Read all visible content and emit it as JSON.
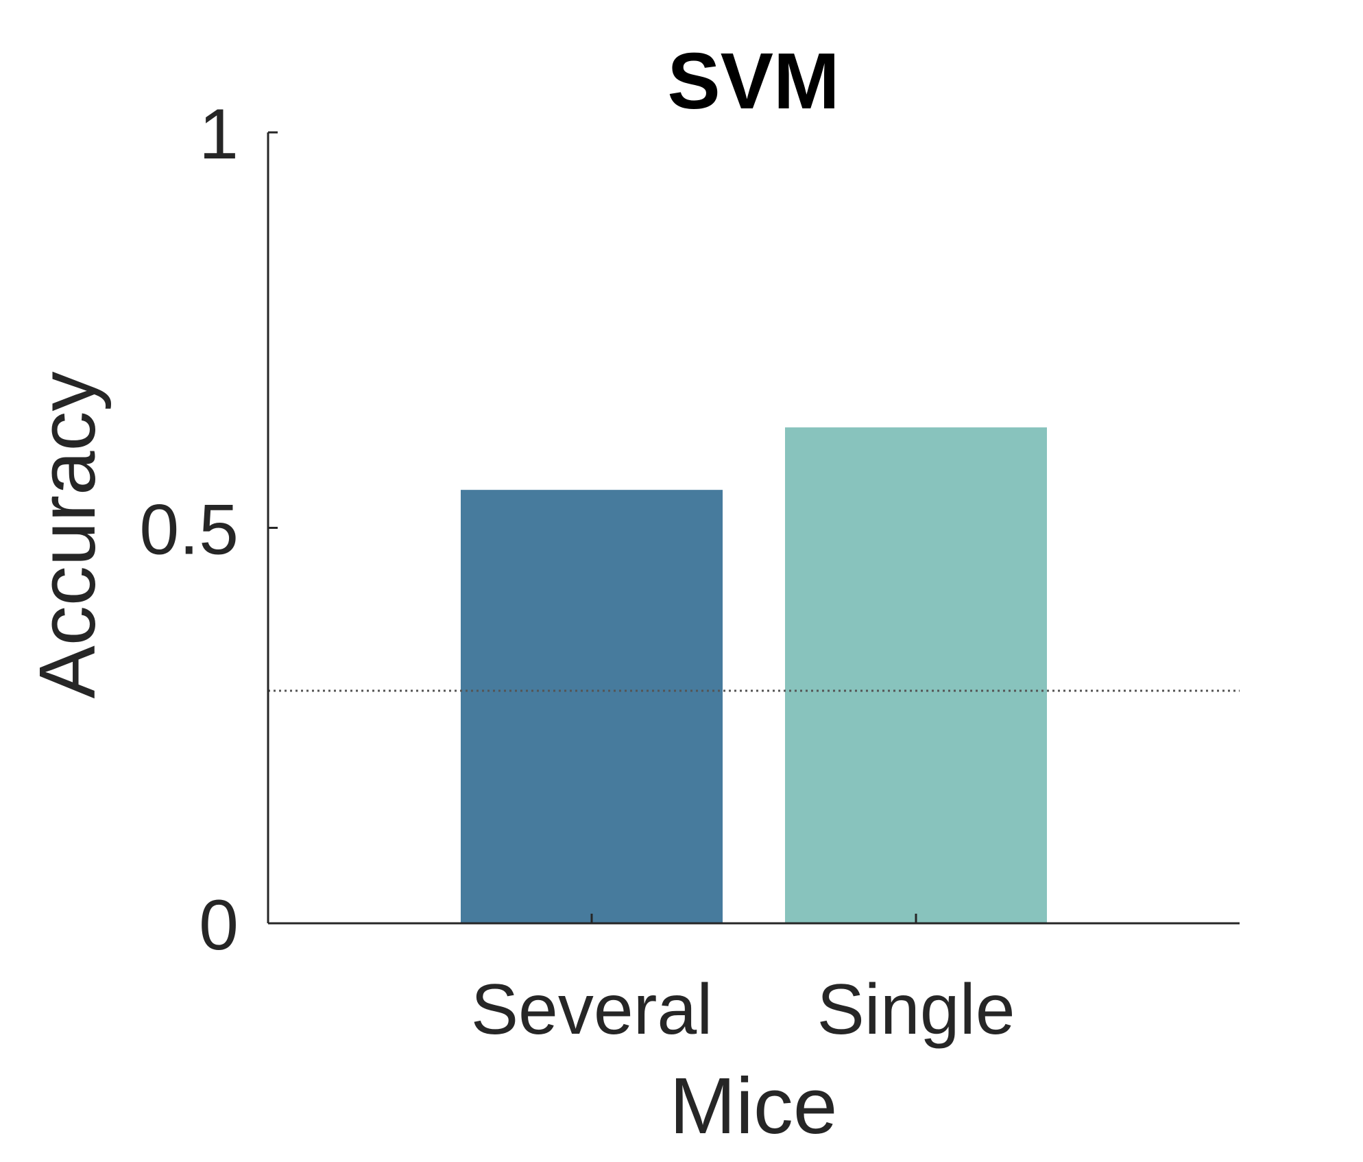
{
  "chart_data": {
    "type": "bar",
    "title": "SVM",
    "xlabel": "Mice",
    "ylabel": "Accuracy",
    "categories": [
      "Several",
      "Single"
    ],
    "values": [
      0.548,
      0.627
    ],
    "colors": [
      "#477b9d",
      "#88c3bd"
    ],
    "ylim": [
      0,
      1
    ],
    "yticks": [
      0,
      0.5,
      1
    ],
    "ytick_labels": [
      "0",
      "0.5",
      "1"
    ],
    "chance_level": 0.294,
    "grid": false,
    "legend": "none"
  }
}
